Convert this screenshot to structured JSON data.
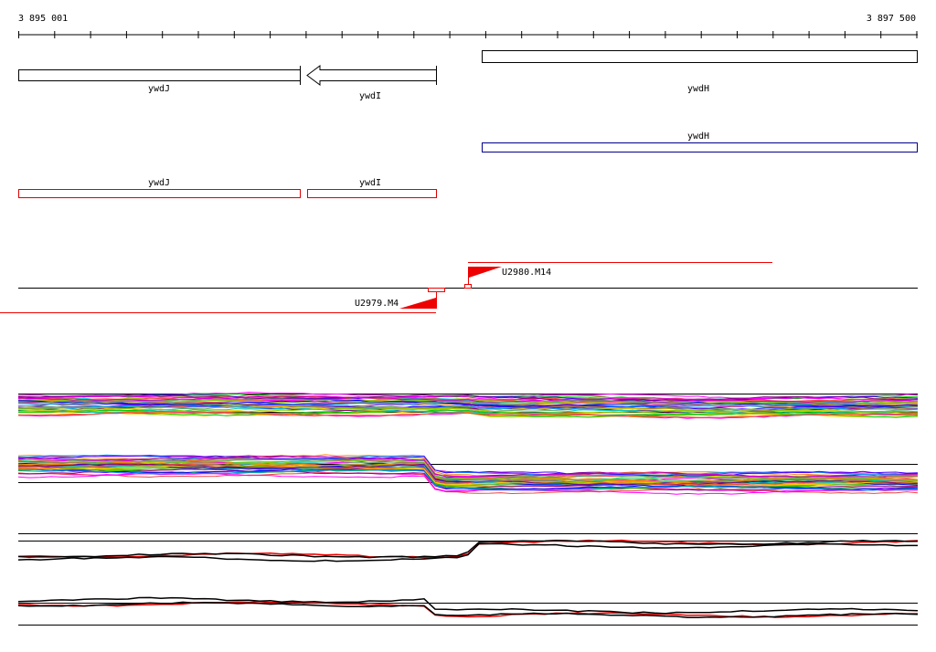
{
  "ruler": {
    "start": "3 895 001",
    "end": "3 897 500"
  },
  "genes": [
    {
      "label": "ywdJ"
    },
    {
      "label": "ywdI"
    },
    {
      "label": "ywdH"
    },
    {
      "label": "ywdH"
    },
    {
      "label": "ywdJ"
    },
    {
      "label": "ywdI"
    }
  ],
  "promoters": [
    {
      "label": "U2980.M14"
    },
    {
      "label": "U2979.M4"
    }
  ]
}
